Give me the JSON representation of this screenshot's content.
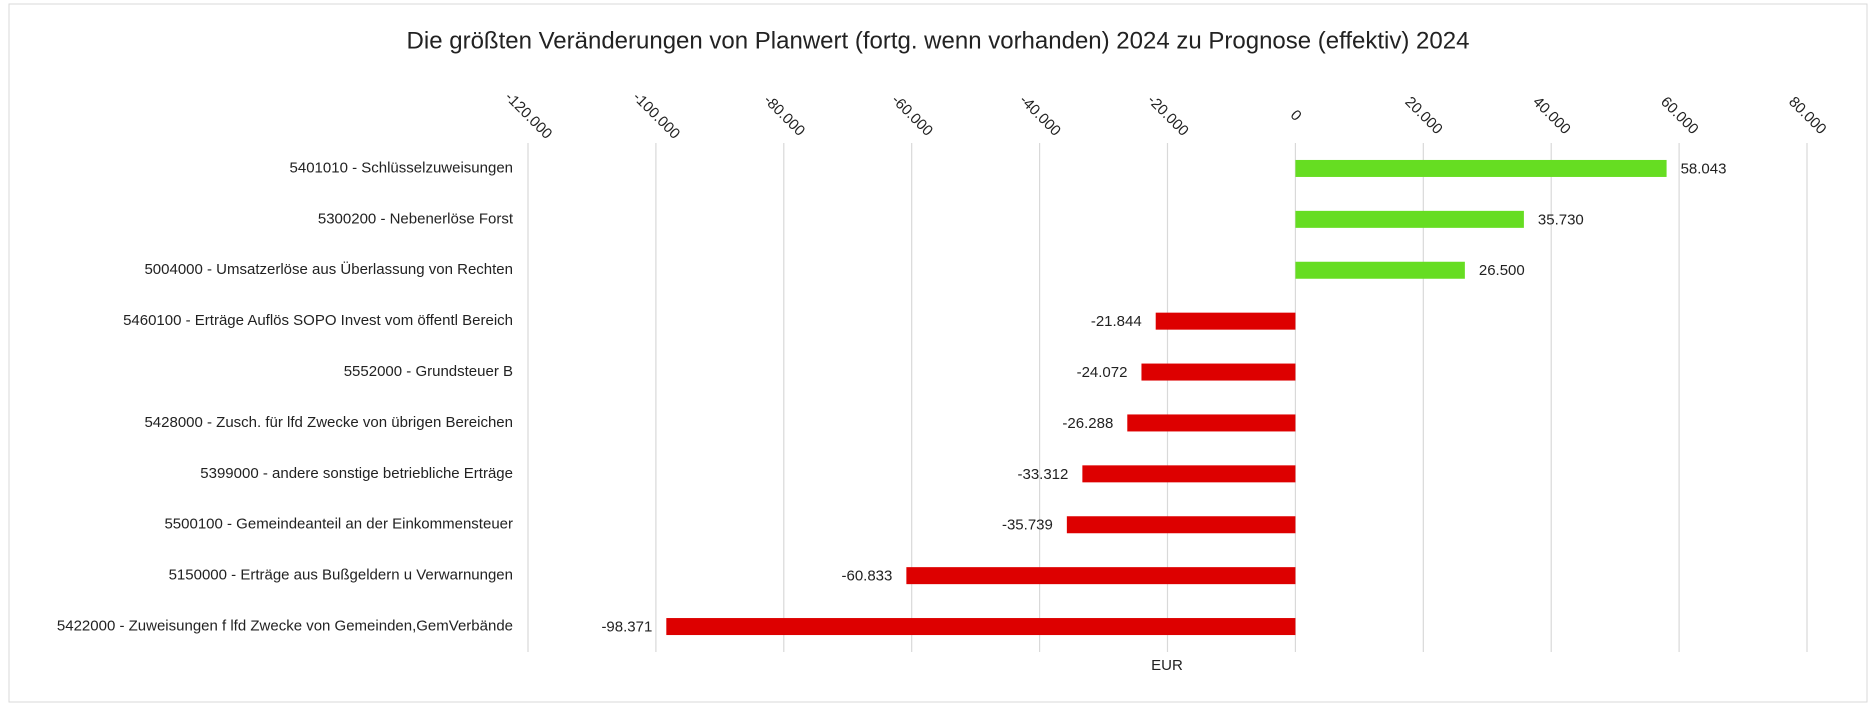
{
  "chart_data": {
    "type": "hbar",
    "title": "Die größten Veränderungen von Planwert (fortg. wenn vorhanden) 2024 zu Prognose (effektiv) 2024",
    "x_label": "EUR",
    "categories": [
      "5401010 - Schlüsselzuweisungen",
      "5300200 - Nebenerlöse Forst",
      "5004000 - Umsatzerlöse aus Überlassung von Rechten",
      "5460100 - Erträge Auflös SOPO Invest vom öffentl Bereich",
      "5552000 - Grundsteuer B",
      "5428000 - Zusch. für lfd Zwecke von übrigen Bereichen",
      "5399000 - andere sonstige betriebliche Erträge",
      "5500100 - Gemeindeanteil an der Einkommensteuer",
      "5150000 - Erträge aus Bußgeldern u Verwarnungen",
      "5422000 - Zuweisungen f lfd Zwecke von Gemeinden,GemVerbände"
    ],
    "values": [
      58043,
      35730,
      26500,
      -21844,
      -24072,
      -26288,
      -33312,
      -35739,
      -60833,
      -98371
    ],
    "value_labels": [
      "58.043",
      "35.730",
      "26.500",
      "-21.844",
      "-24.072",
      "-26.288",
      "-33.312",
      "-35.739",
      "-60.833",
      "-98.371"
    ],
    "colors": [
      "#66dd22",
      "#66dd22",
      "#66dd22",
      "#dd0000",
      "#dd0000",
      "#dd0000",
      "#dd0000",
      "#dd0000",
      "#dd0000",
      "#dd0000"
    ],
    "xlim": [
      -120000,
      80000
    ],
    "xticks": [
      {
        "value": -120000,
        "label": "-120.000"
      },
      {
        "value": -100000,
        "label": "-100.000"
      },
      {
        "value": -80000,
        "label": "-80.000"
      },
      {
        "value": -60000,
        "label": "-60.000"
      },
      {
        "value": -40000,
        "label": "-40.000"
      },
      {
        "value": -20000,
        "label": "-20.000"
      },
      0,
      {
        "value": 20000,
        "label": "20.000"
      },
      {
        "value": 40000,
        "label": "40.000"
      },
      {
        "value": 60000,
        "label": "60.000"
      },
      {
        "value": 80000,
        "label": "80.000"
      }
    ],
    "grid": true
  }
}
